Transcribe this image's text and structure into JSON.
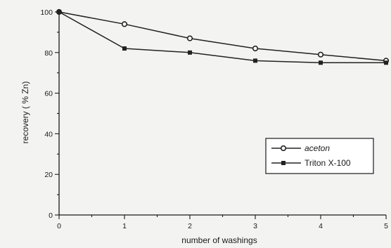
{
  "chart_data": {
    "type": "line",
    "title": "",
    "xlabel": "number of washings",
    "ylabel": "recovery ( % Zn)",
    "xlim": [
      0,
      5
    ],
    "ylim": [
      0,
      100
    ],
    "x_ticks": [
      0,
      1,
      2,
      3,
      4,
      5
    ],
    "y_ticks": [
      0,
      20,
      40,
      60,
      80,
      100
    ],
    "grid": false,
    "legend_position": "lower-right",
    "series": [
      {
        "name": "aceton",
        "marker": "circle",
        "italic": true,
        "x": [
          0,
          1,
          2,
          3,
          4,
          5
        ],
        "y": [
          100,
          94,
          87,
          82,
          79,
          76
        ]
      },
      {
        "name": "Triton X-100",
        "marker": "square",
        "italic": false,
        "x": [
          0,
          1,
          2,
          3,
          4,
          5
        ],
        "y": [
          100,
          82,
          80,
          76,
          75,
          75
        ]
      }
    ]
  },
  "colors": {
    "line": "#222222",
    "background": "#f3f3f1"
  }
}
